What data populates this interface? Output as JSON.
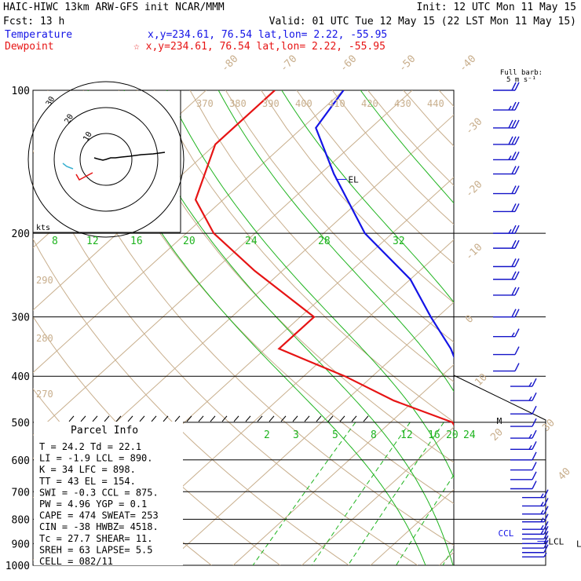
{
  "header": {
    "line1_left": "HAIC-HIWC 13km ARW-GFS init   NCAR/MMM",
    "line1_right": "Init: 12 UTC Mon 11 May 15",
    "fcst": "Fcst:    13 h",
    "valid": "Valid: 01 UTC Tue 12 May 15 (22 LST Mon 11 May 15)",
    "temp_label": "Temperature",
    "temp_loc": "x,y=234.61, 76.54   lat,lon=  2.22, -55.95",
    "dew_label": "Dewpoint",
    "dew_loc": "☆ x,y=234.61, 76.54   lat,lon=  2.22, -55.95",
    "barb_note_1": "Full barb:",
    "barb_note_2": "5 m s⁻¹"
  },
  "colors": {
    "temperature": "#1414e6",
    "dewpoint": "#e61414",
    "isotherm": "#c8ae8c",
    "mixing_ratio": "#1fb41f",
    "isobar": "#000000",
    "wind_barb": "#1414c8",
    "hodograph": "#000000"
  },
  "chart_data": {
    "type": "skew-t log-p",
    "pressure_axis": {
      "ticks": [
        100,
        200,
        300,
        400,
        500,
        600,
        700,
        800,
        900,
        1000
      ],
      "tick_labels": [
        "100",
        "200",
        "300",
        "400",
        "500",
        "600",
        "700",
        "800",
        "900",
        "1000"
      ],
      "range_hpa": [
        1000,
        100
      ],
      "scale": "log"
    },
    "isotherm_labels": [
      "-80",
      "-70",
      "-60",
      "-50",
      "-40",
      "-30",
      "-20",
      "-10",
      "0",
      "10",
      "20",
      "30",
      "40"
    ],
    "theta_labels_top": [
      "370",
      "380",
      "390",
      "400",
      "410",
      "420",
      "430",
      "440"
    ],
    "theta_labels_left": [
      "290",
      "280",
      "270"
    ],
    "mixing_ratio_labels_upper": [
      "8",
      "12",
      "16",
      "20",
      "24",
      "28",
      "32"
    ],
    "mixing_ratio_labels_lower": [
      "2",
      "3",
      "5",
      "8",
      "12",
      "16",
      "20",
      "24"
    ],
    "temperature_profile": [
      {
        "p": 100,
        "t": -80
      },
      {
        "p": 120,
        "t": -78
      },
      {
        "p": 150,
        "t": -68
      },
      {
        "p": 200,
        "t": -54
      },
      {
        "p": 250,
        "t": -40
      },
      {
        "p": 300,
        "t": -31
      },
      {
        "p": 350,
        "t": -23
      },
      {
        "p": 400,
        "t": -17
      },
      {
        "p": 500,
        "t": -5
      },
      {
        "p": 600,
        "t": 3
      },
      {
        "p": 700,
        "t": 10
      },
      {
        "p": 800,
        "t": 15
      },
      {
        "p": 870,
        "t": 19
      },
      {
        "p": 920,
        "t": 22
      },
      {
        "p": 960,
        "t": 24.2
      }
    ],
    "dewpoint_profile": [
      {
        "p": 100,
        "t": -90
      },
      {
        "p": 130,
        "t": -90
      },
      {
        "p": 170,
        "t": -84
      },
      {
        "p": 200,
        "t": -76
      },
      {
        "p": 240,
        "t": -64
      },
      {
        "p": 300,
        "t": -48
      },
      {
        "p": 350,
        "t": -48
      },
      {
        "p": 400,
        "t": -34
      },
      {
        "p": 450,
        "t": -23
      },
      {
        "p": 500,
        "t": -11
      },
      {
        "p": 550,
        "t": -6
      },
      {
        "p": 600,
        "t": -2
      },
      {
        "p": 700,
        "t": 5
      },
      {
        "p": 780,
        "t": 12
      },
      {
        "p": 850,
        "t": 16
      },
      {
        "p": 920,
        "t": 20
      },
      {
        "p": 960,
        "t": 22.1
      }
    ],
    "level_markers": [
      {
        "label": "EL",
        "p": 154
      },
      {
        "label": "M",
        "p": 500
      },
      {
        "label": "CCL",
        "p": 875
      },
      {
        "label": "LCL",
        "p": 890
      },
      {
        "label": "LFC",
        "p": 898
      }
    ],
    "wind_barbs": [
      {
        "p": 100,
        "dir": 90,
        "spd": 12
      },
      {
        "p": 110,
        "dir": 90,
        "spd": 14
      },
      {
        "p": 120,
        "dir": 90,
        "spd": 16
      },
      {
        "p": 130,
        "dir": 90,
        "spd": 15
      },
      {
        "p": 140,
        "dir": 90,
        "spd": 13
      },
      {
        "p": 150,
        "dir": 90,
        "spd": 12
      },
      {
        "p": 165,
        "dir": 90,
        "spd": 11
      },
      {
        "p": 180,
        "dir": 90,
        "spd": 12
      },
      {
        "p": 200,
        "dir": 90,
        "spd": 13
      },
      {
        "p": 215,
        "dir": 90,
        "spd": 12
      },
      {
        "p": 235,
        "dir": 90,
        "spd": 11
      },
      {
        "p": 250,
        "dir": 90,
        "spd": 12
      },
      {
        "p": 270,
        "dir": 90,
        "spd": 10
      },
      {
        "p": 300,
        "dir": 90,
        "spd": 11
      },
      {
        "p": 330,
        "dir": 120,
        "spd": 8
      },
      {
        "p": 360,
        "dir": 90,
        "spd": 6
      },
      {
        "p": 390,
        "dir": 90,
        "spd": 7
      },
      {
        "p": 420,
        "dir": 90,
        "spd": 8
      },
      {
        "p": 450,
        "dir": 90,
        "spd": 8
      },
      {
        "p": 480,
        "dir": 90,
        "spd": 7
      },
      {
        "p": 510,
        "dir": 90,
        "spd": 7
      },
      {
        "p": 540,
        "dir": 90,
        "spd": 8
      },
      {
        "p": 570,
        "dir": 90,
        "spd": 8
      },
      {
        "p": 600,
        "dir": 90,
        "spd": 7
      },
      {
        "p": 630,
        "dir": 90,
        "spd": 7
      },
      {
        "p": 660,
        "dir": 90,
        "spd": 7
      },
      {
        "p": 690,
        "dir": 90,
        "spd": 7
      },
      {
        "p": 720,
        "dir": 90,
        "spd": 8
      },
      {
        "p": 750,
        "dir": 90,
        "spd": 8
      },
      {
        "p": 780,
        "dir": 90,
        "spd": 9
      },
      {
        "p": 810,
        "dir": 90,
        "spd": 9
      },
      {
        "p": 840,
        "dir": 90,
        "spd": 8
      },
      {
        "p": 860,
        "dir": 90,
        "spd": 8
      },
      {
        "p": 880,
        "dir": 90,
        "spd": 7
      },
      {
        "p": 900,
        "dir": 90,
        "spd": 7
      },
      {
        "p": 920,
        "dir": 90,
        "spd": 6
      },
      {
        "p": 940,
        "dir": 90,
        "spd": 5
      },
      {
        "p": 960,
        "dir": 90,
        "spd": 4
      }
    ]
  },
  "hodograph": {
    "ring_labels": [
      "30",
      "20",
      "10"
    ],
    "units_label": "kts"
  },
  "parcel_info": {
    "title": "Parcel Info",
    "rows": [
      "T  =    24.2  Td =  22.1",
      "LI =    -1.9  LCL =  890.",
      "K  =      34  LFC =  898.",
      "TT =      43  EL  =  154.",
      "SWI =   -0.3  CCL =  875.",
      "PW =    4.96  YGP =   0.1",
      "CAPE =   474  SWEAT=  253",
      "CIN =    -38  HWBZ= 4518.",
      "Tc =    27.7  SHEAR=  11.",
      "SREH =    63  LAPSE=  5.5",
      "CELL = 082/11"
    ]
  }
}
